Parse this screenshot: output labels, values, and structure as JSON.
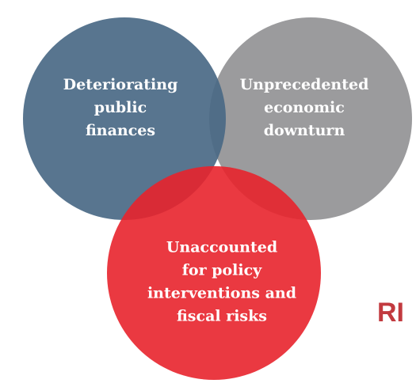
{
  "nodes": [
    {
      "label": [
        "Deteriorating",
        "public",
        "finances"
      ]
    },
    {
      "label": [
        "Unprecedented",
        "economic",
        "downturn"
      ]
    },
    {
      "label": [
        "Unaccounted",
        "for policy",
        "interventions and",
        "fiscal risks"
      ]
    }
  ],
  "edge_text": "RI"
}
